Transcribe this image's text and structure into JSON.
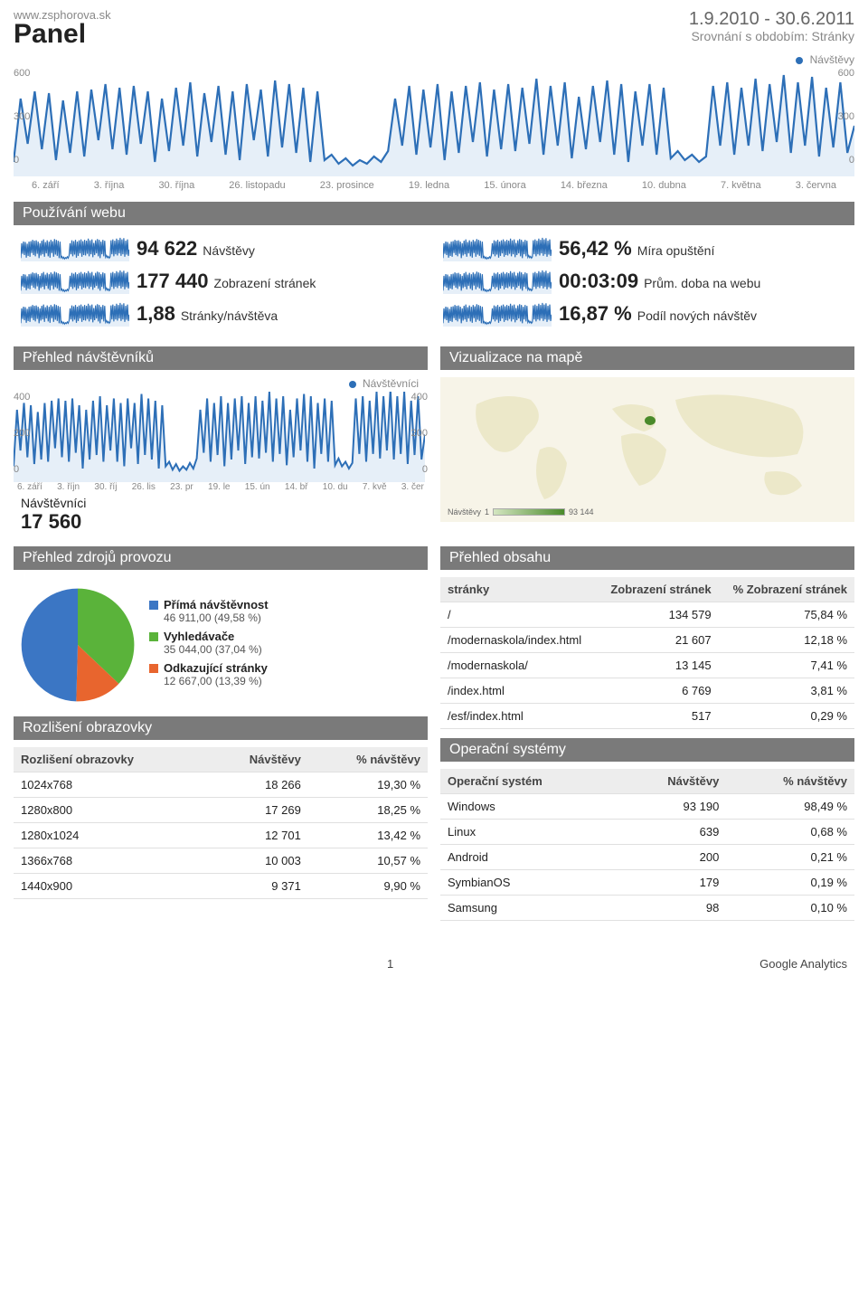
{
  "header": {
    "site_url": "www.zsphorova.sk",
    "title": "Panel",
    "date_range": "1.9.2010 - 30.6.2011",
    "compare_label": "Srovnání s obdobím: Stránky"
  },
  "main_chart": {
    "legend_label": "Návštěvy",
    "legend_color": "#2d6fb7",
    "line_color": "#2d6fb7",
    "fill_color": "#e6eff8",
    "ylim": [
      0,
      600
    ],
    "y_ticks_left": [
      "600",
      "300",
      "0"
    ],
    "y_ticks_right": [
      "600",
      "300",
      "0"
    ],
    "x_ticks": [
      "6. září",
      "3. října",
      "30. října",
      "26. listopadu",
      "23. prosince",
      "19. ledna",
      "15. února",
      "14. března",
      "10. dubna",
      "7. května",
      "3. června"
    ],
    "values": [
      80,
      430,
      180,
      470,
      150,
      460,
      90,
      420,
      130,
      470,
      110,
      480,
      200,
      510,
      150,
      490,
      120,
      500,
      180,
      470,
      80,
      430,
      140,
      490,
      170,
      520,
      110,
      460,
      190,
      500,
      120,
      470,
      90,
      510,
      200,
      480,
      110,
      530,
      160,
      510,
      130,
      490,
      80,
      470,
      90,
      120,
      70,
      100,
      60,
      90,
      70,
      110,
      80,
      140,
      430,
      170,
      500,
      120,
      480,
      160,
      510,
      90,
      470,
      130,
      500,
      190,
      520,
      110,
      480,
      150,
      510,
      140,
      490,
      180,
      540,
      120,
      500,
      170,
      520,
      100,
      440,
      150,
      500,
      190,
      530,
      120,
      510,
      80,
      470,
      170,
      510,
      120,
      490,
      100,
      140,
      90,
      120,
      80,
      110,
      500,
      170,
      520,
      120,
      490,
      170,
      540,
      140,
      510,
      190,
      560,
      130,
      520,
      170,
      550,
      110,
      490,
      160,
      520,
      130,
      280
    ]
  },
  "usage": {
    "header": "Používání webu",
    "sparkline_color": "#2d6fb7",
    "sparkline_fill": "#e6eff8",
    "metrics": [
      {
        "value": "94 622",
        "label": "Návštěvy"
      },
      {
        "value": "56,42 %",
        "label": "Míra opuštění"
      },
      {
        "value": "177 440",
        "label": "Zobrazení stránek"
      },
      {
        "value": "00:03:09",
        "label": "Prům. doba na webu"
      },
      {
        "value": "1,88",
        "label": "Stránky/návštěva"
      },
      {
        "value": "16,87 %",
        "label": "Podíl nových návštěv"
      }
    ]
  },
  "visitors_overview": {
    "header": "Přehled návštěvníků",
    "legend_label": "Návštěvníci",
    "legend_color": "#2d6fb7",
    "ylim": [
      0,
      400
    ],
    "y_ticks": [
      "400",
      "200",
      "0"
    ],
    "x_ticks": [
      "6. září",
      "3. říjn",
      "30. říj",
      "26. lis",
      "23. pr",
      "19. le",
      "15. ún",
      "14. bř",
      "10. du",
      "7. kvě",
      "3. čer"
    ],
    "values": [
      70,
      320,
      140,
      350,
      110,
      340,
      80,
      310,
      100,
      350,
      90,
      360,
      150,
      370,
      110,
      360,
      90,
      370,
      130,
      340,
      60,
      320,
      100,
      360,
      120,
      380,
      90,
      340,
      140,
      370,
      90,
      350,
      70,
      370,
      150,
      350,
      80,
      390,
      120,
      370,
      100,
      360,
      60,
      340,
      70,
      90,
      55,
      80,
      50,
      70,
      55,
      85,
      60,
      105,
      320,
      130,
      370,
      90,
      350,
      120,
      380,
      70,
      350,
      100,
      370,
      140,
      380,
      80,
      350,
      110,
      380,
      105,
      360,
      130,
      400,
      90,
      370,
      125,
      380,
      75,
      320,
      110,
      370,
      140,
      390,
      90,
      380,
      60,
      350,
      125,
      370,
      90,
      360,
      75,
      105,
      70,
      90,
      60,
      85,
      370,
      125,
      380,
      90,
      360,
      125,
      400,
      105,
      380,
      140,
      410,
      100,
      380,
      125,
      400,
      80,
      360,
      120,
      380,
      100,
      210
    ],
    "visitors_label": "Návštěvníci",
    "visitors_value": "17 560"
  },
  "map_overlay": {
    "header": "Vizualizace na mapě",
    "land_color": "#ece8c9",
    "highlight_color": "#4a8a2a",
    "legend_label": "Návštěvy",
    "legend_min": "1",
    "legend_max": "93 144"
  },
  "traffic_sources": {
    "header": "Přehled zdrojů provozu",
    "pie": {
      "slices": [
        {
          "label": "Přímá návštěvnost",
          "sub": "46 911,00 (49,58 %)",
          "value": 49.58,
          "color": "#3b76c4"
        },
        {
          "label": "Vyhledávače",
          "sub": "35 044,00 (37,04 %)",
          "value": 37.04,
          "color": "#5ab33a"
        },
        {
          "label": "Odkazující stránky",
          "sub": "12 667,00 (13,39 %)",
          "value": 13.39,
          "color": "#e8652e"
        }
      ]
    }
  },
  "screen_res": {
    "header": "Rozlišení obrazovky",
    "columns": [
      "Rozlišení obrazovky",
      "Návštěvy",
      "% návštěvy"
    ],
    "rows": [
      [
        "1024x768",
        "18 266",
        "19,30 %"
      ],
      [
        "1280x800",
        "17 269",
        "18,25 %"
      ],
      [
        "1280x1024",
        "12 701",
        "13,42 %"
      ],
      [
        "1366x768",
        "10 003",
        "10,57 %"
      ],
      [
        "1440x900",
        "9 371",
        "9,90 %"
      ]
    ]
  },
  "content_overview": {
    "header": "Přehled obsahu",
    "columns": [
      "stránky",
      "Zobrazení stránek",
      "% Zobrazení stránek"
    ],
    "rows": [
      [
        "/",
        "134 579",
        "75,84 %"
      ],
      [
        "/modernaskola/index.html",
        "21 607",
        "12,18 %"
      ],
      [
        "/modernaskola/",
        "13 145",
        "7,41 %"
      ],
      [
        "/index.html",
        "6 769",
        "3,81 %"
      ],
      [
        "/esf/index.html",
        "517",
        "0,29 %"
      ]
    ]
  },
  "os": {
    "header": "Operační systémy",
    "columns": [
      "Operační systém",
      "Návštěvy",
      "% návštěvy"
    ],
    "rows": [
      [
        "Windows",
        "93 190",
        "98,49 %"
      ],
      [
        "Linux",
        "639",
        "0,68 %"
      ],
      [
        "Android",
        "200",
        "0,21 %"
      ],
      [
        "SymbianOS",
        "179",
        "0,19 %"
      ],
      [
        "Samsung",
        "98",
        "0,10 %"
      ]
    ]
  },
  "footer": {
    "page": "1",
    "brand": "Google Analytics"
  }
}
